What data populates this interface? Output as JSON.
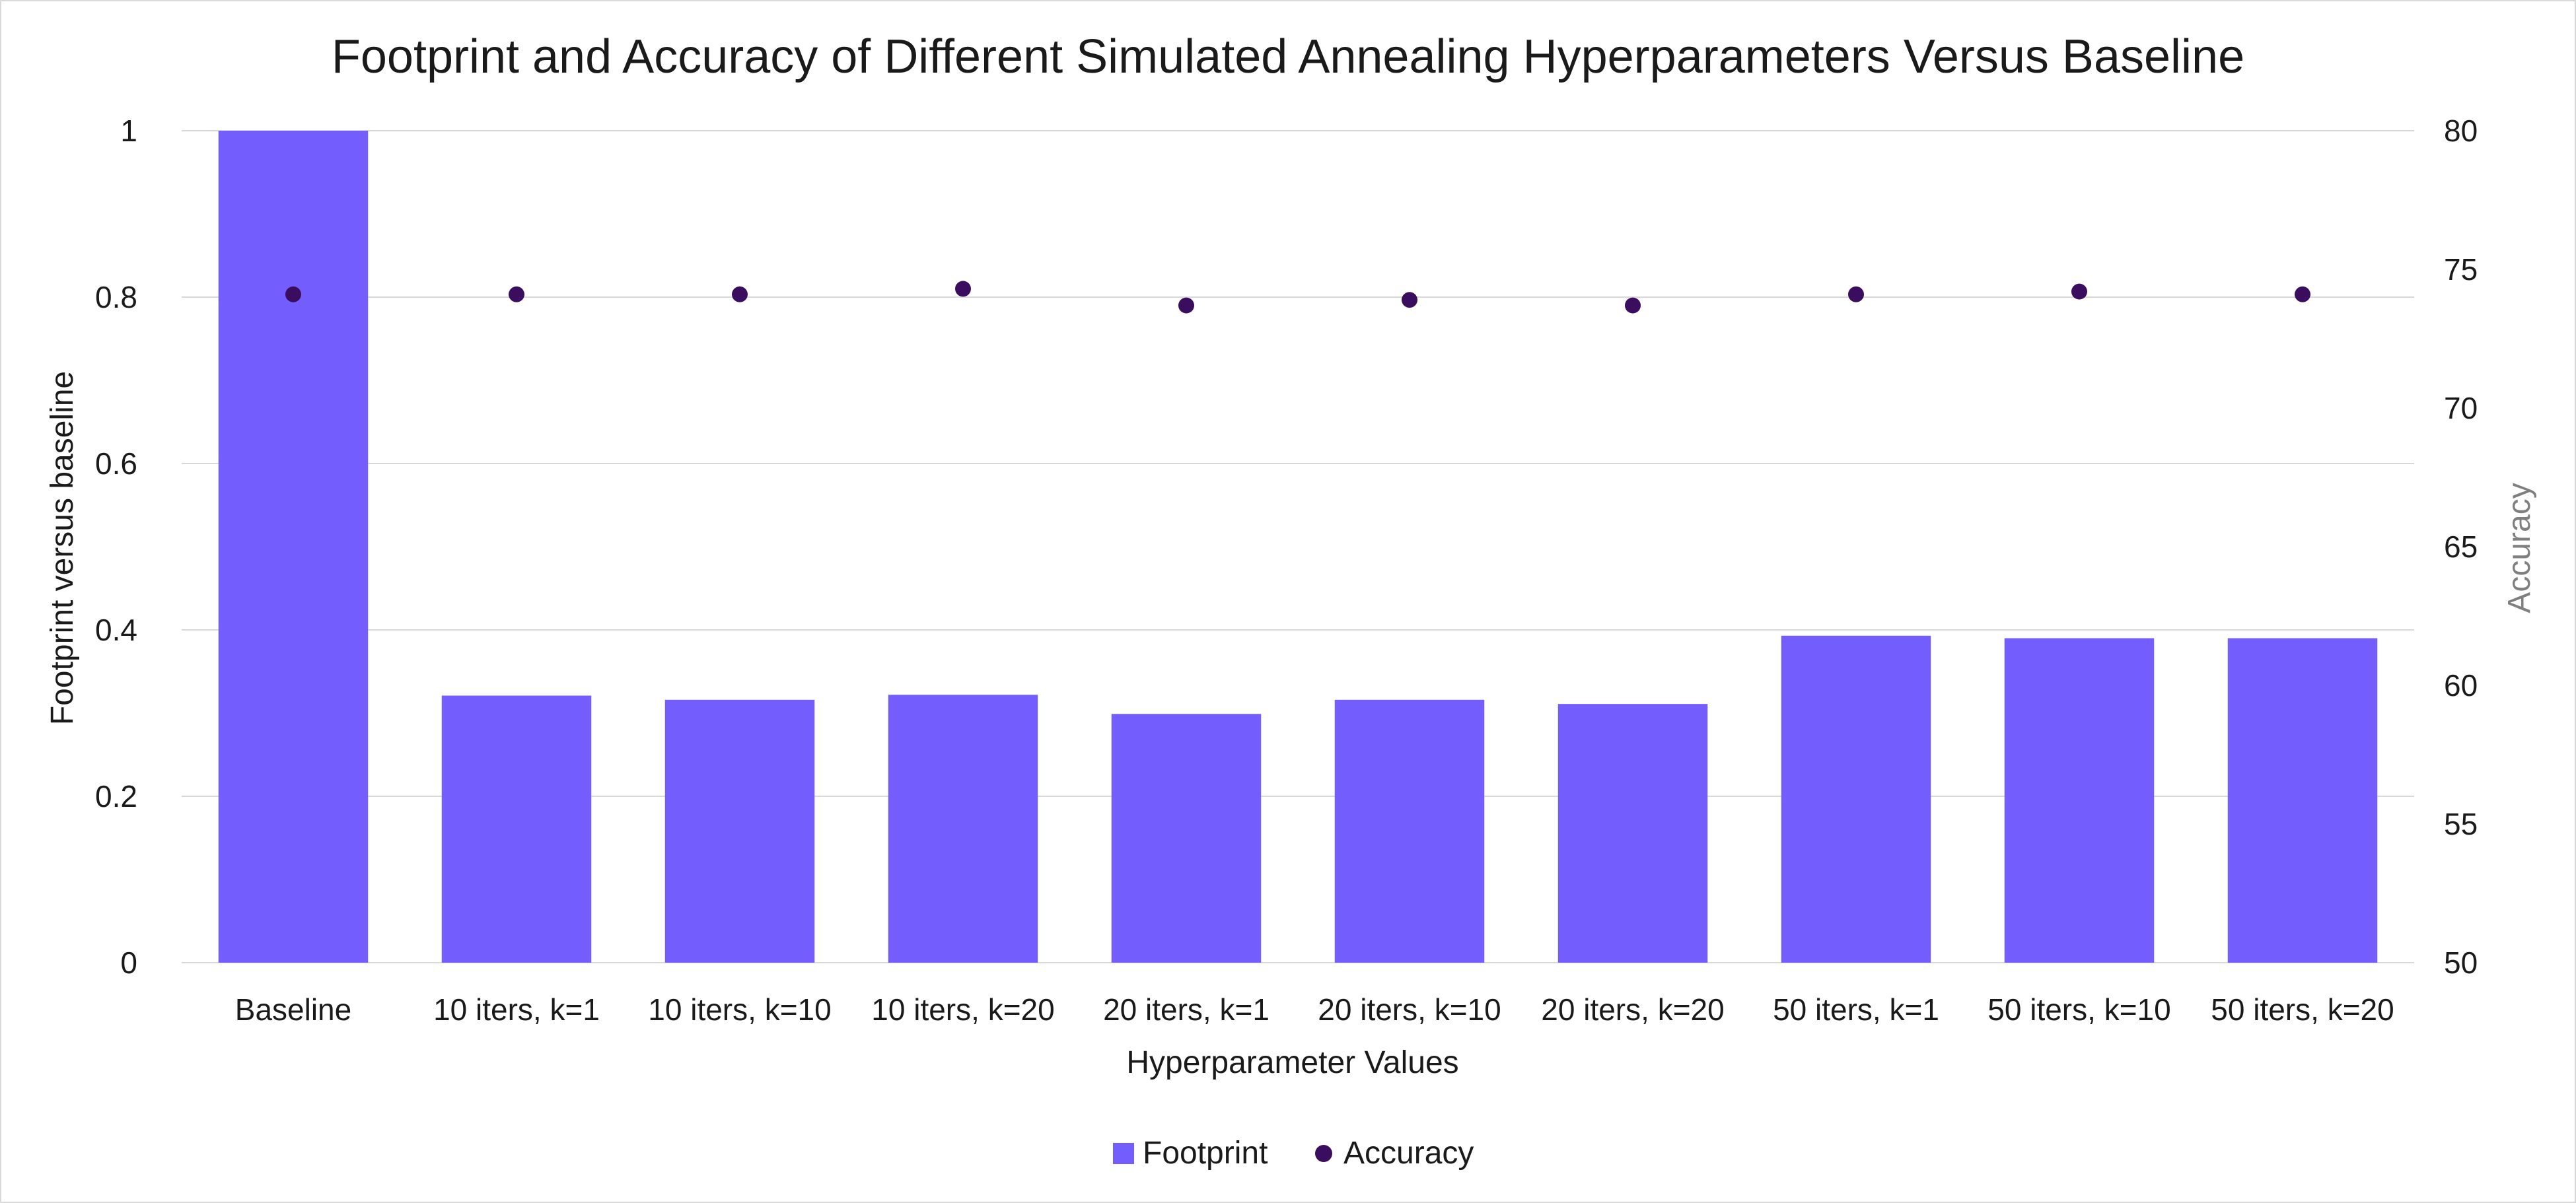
{
  "chart_data": {
    "type": "bar",
    "title": "Footprint and Accuracy of Different Simulated Annealing Hyperparameters Versus Baseline",
    "xlabel": "Hyperparameter Values",
    "ylabel": "Footprint versus baseline",
    "y2label": "Accuracy",
    "categories": [
      "Baseline",
      "10 iters, k=1",
      "10 iters, k=10",
      "10 iters, k=20",
      "20 iters, k=1",
      "20 iters, k=10",
      "20 iters, k=20",
      "50 iters, k=1",
      "50 iters, k=10",
      "50 iters, k=20"
    ],
    "ylim": [
      0,
      1
    ],
    "y2lim": [
      50,
      80
    ],
    "yticks": [
      "0",
      "0.2",
      "0.4",
      "0.6",
      "0.8",
      "1"
    ],
    "y2ticks": [
      "50",
      "55",
      "60",
      "65",
      "70",
      "75",
      "80"
    ],
    "grid": true,
    "legend_position": "bottom",
    "series": [
      {
        "name": "Footprint",
        "type": "bar",
        "axis": "left",
        "color": "#735dfd",
        "values": [
          1.0,
          0.321,
          0.316,
          0.322,
          0.299,
          0.316,
          0.311,
          0.393,
          0.39,
          0.39
        ]
      },
      {
        "name": "Accuracy",
        "type": "scatter",
        "axis": "right",
        "color": "#3b0d5f",
        "values": [
          74.1,
          74.1,
          74.1,
          74.3,
          73.7,
          73.9,
          73.7,
          74.1,
          74.2,
          74.1
        ]
      }
    ]
  }
}
